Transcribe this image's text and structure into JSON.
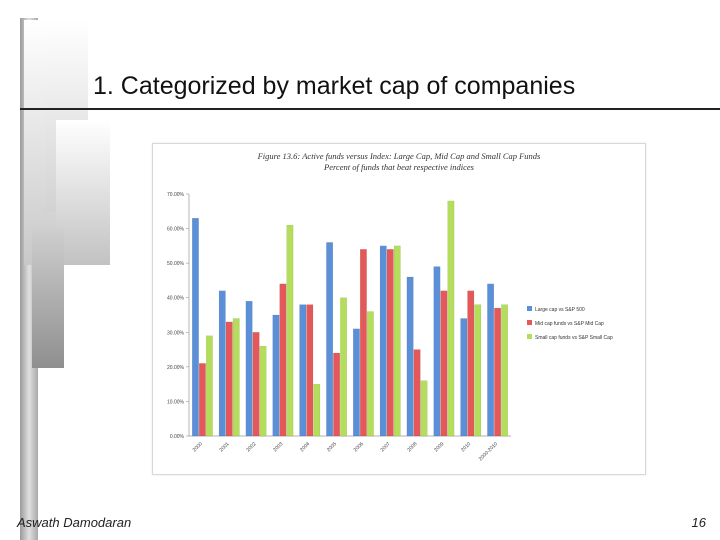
{
  "slide": {
    "title": "1. Categorized by market cap of companies",
    "author": "Aswath Damodaran",
    "page_number": "16"
  },
  "colors": {
    "large_cap": "#5b8fd8",
    "mid_cap": "#e4585a",
    "small_cap": "#b3dd5a",
    "frame": "#d8d8d8",
    "gridline": "#c8c8c8"
  },
  "chart_data": {
    "type": "bar",
    "title": "Figure 13.6: Active funds versus Index: Large Cap, Mid Cap and Small Cap Funds",
    "subtitle": "Percent of funds that beat respective indices",
    "xlabel": "",
    "ylabel": "",
    "ylim": [
      0,
      0.7
    ],
    "yticks": [
      "0.00%",
      "10.00%",
      "20.00%",
      "30.00%",
      "40.00%",
      "50.00%",
      "60.00%",
      "70.00%"
    ],
    "grid": false,
    "legend_position": "right",
    "categories": [
      "2000",
      "2001",
      "2002",
      "2003",
      "2004",
      "2005",
      "2006",
      "2007",
      "2008",
      "2009",
      "2010",
      "2000-2010"
    ],
    "series": [
      {
        "name": "Large cap vs S&P 500",
        "values": [
          0.63,
          0.42,
          0.39,
          0.35,
          0.38,
          0.56,
          0.31,
          0.55,
          0.46,
          0.49,
          0.34,
          0.44
        ]
      },
      {
        "name": "Mid cap funds vs S&P Mid Cap",
        "values": [
          0.21,
          0.33,
          0.3,
          0.44,
          0.38,
          0.24,
          0.54,
          0.54,
          0.25,
          0.42,
          0.42,
          0.37
        ]
      },
      {
        "name": "Small cap funds vs S&P Small Cap",
        "values": [
          0.29,
          0.34,
          0.26,
          0.61,
          0.15,
          0.4,
          0.36,
          0.55,
          0.16,
          0.68,
          0.38,
          0.38
        ]
      }
    ]
  }
}
